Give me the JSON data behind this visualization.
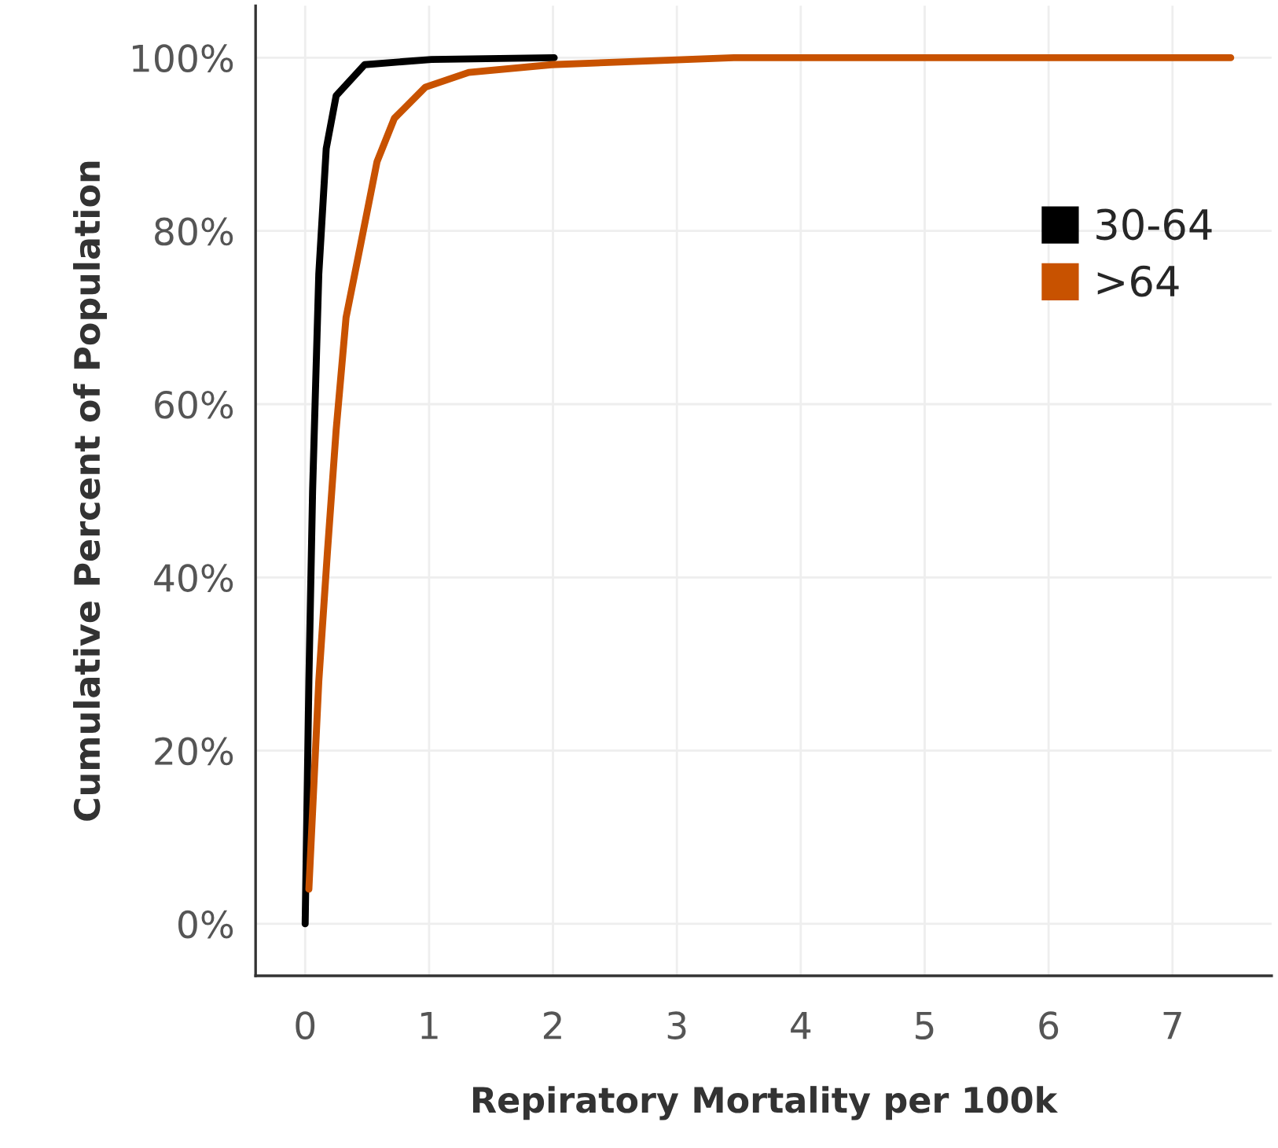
{
  "chart_data": {
    "type": "line",
    "xlabel": "Repiratory Mortality per 100k",
    "ylabel": "Cumulative Percent of Population",
    "xlim": [
      -0.4,
      7.8
    ],
    "xticks": [
      0,
      1,
      2,
      3,
      4,
      5,
      6,
      7
    ],
    "ylim": [
      -6,
      106
    ],
    "yticks": [
      {
        "value": 0,
        "label": "0%"
      },
      {
        "value": 20,
        "label": "20%"
      },
      {
        "value": 40,
        "label": "40%"
      },
      {
        "value": 60,
        "label": "60%"
      },
      {
        "value": 80,
        "label": "80%"
      },
      {
        "value": 100,
        "label": "100%"
      }
    ],
    "grid": true,
    "legend": "upper right",
    "marker": "none",
    "line_style": "solid",
    "series": [
      {
        "name": "30-64",
        "color": "#000000",
        "x": [
          0,
          0.03,
          0.06,
          0.11,
          0.17,
          0.25,
          0.48,
          1.02,
          2.01
        ],
        "values": [
          0,
          28,
          50,
          75,
          89.5,
          95.6,
          99.2,
          99.8,
          100
        ]
      },
      {
        "name": ">64",
        "color": "#c85200",
        "x": [
          0.03,
          0.11,
          0.18,
          0.25,
          0.33,
          0.45,
          0.58,
          0.72,
          0.97,
          1.32,
          1.99,
          2.54,
          3.46,
          7.47
        ],
        "values": [
          4,
          28,
          43,
          57,
          70,
          78.6,
          88,
          93,
          96.6,
          98.3,
          99.2,
          99.5,
          100,
          100
        ]
      }
    ]
  }
}
